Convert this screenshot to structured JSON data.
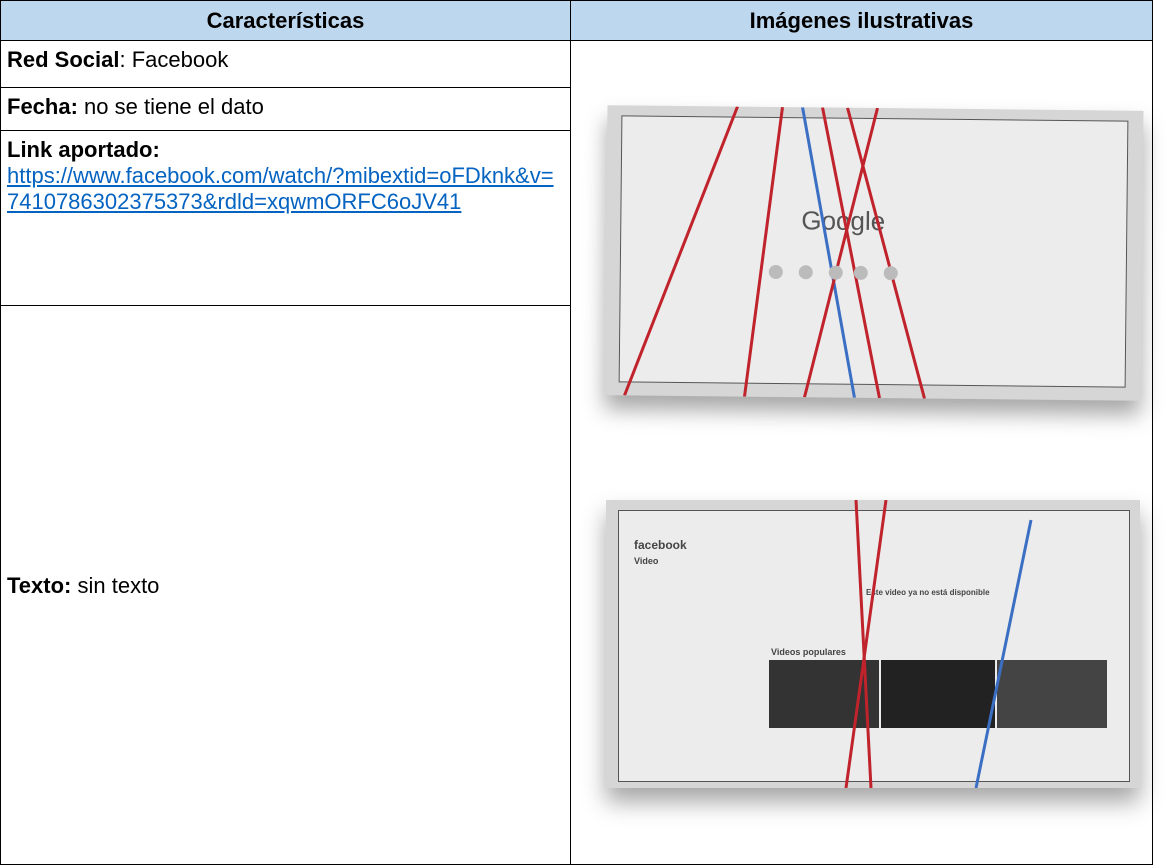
{
  "table": {
    "headers": [
      "Características",
      "Imágenes ilustrativas"
    ],
    "rows": [
      {
        "label": "Red Social",
        "text": ": Facebook"
      },
      {
        "label": "Fecha:",
        "text": " no se tiene el dato"
      },
      {
        "label": "Link aportado:",
        "link": "https://www.facebook.com/watch/?mibextid=oFDknk&v=7410786302375373&rdld=xqwmORFC6oJV41"
      },
      {
        "label": "Texto:",
        "text": " sin texto"
      }
    ]
  },
  "images": [
    {
      "caption": "Google"
    },
    {
      "caption": "facebook",
      "heading": "Video",
      "notice": "Este video ya no está disponible",
      "section": "Videos populares"
    }
  ]
}
